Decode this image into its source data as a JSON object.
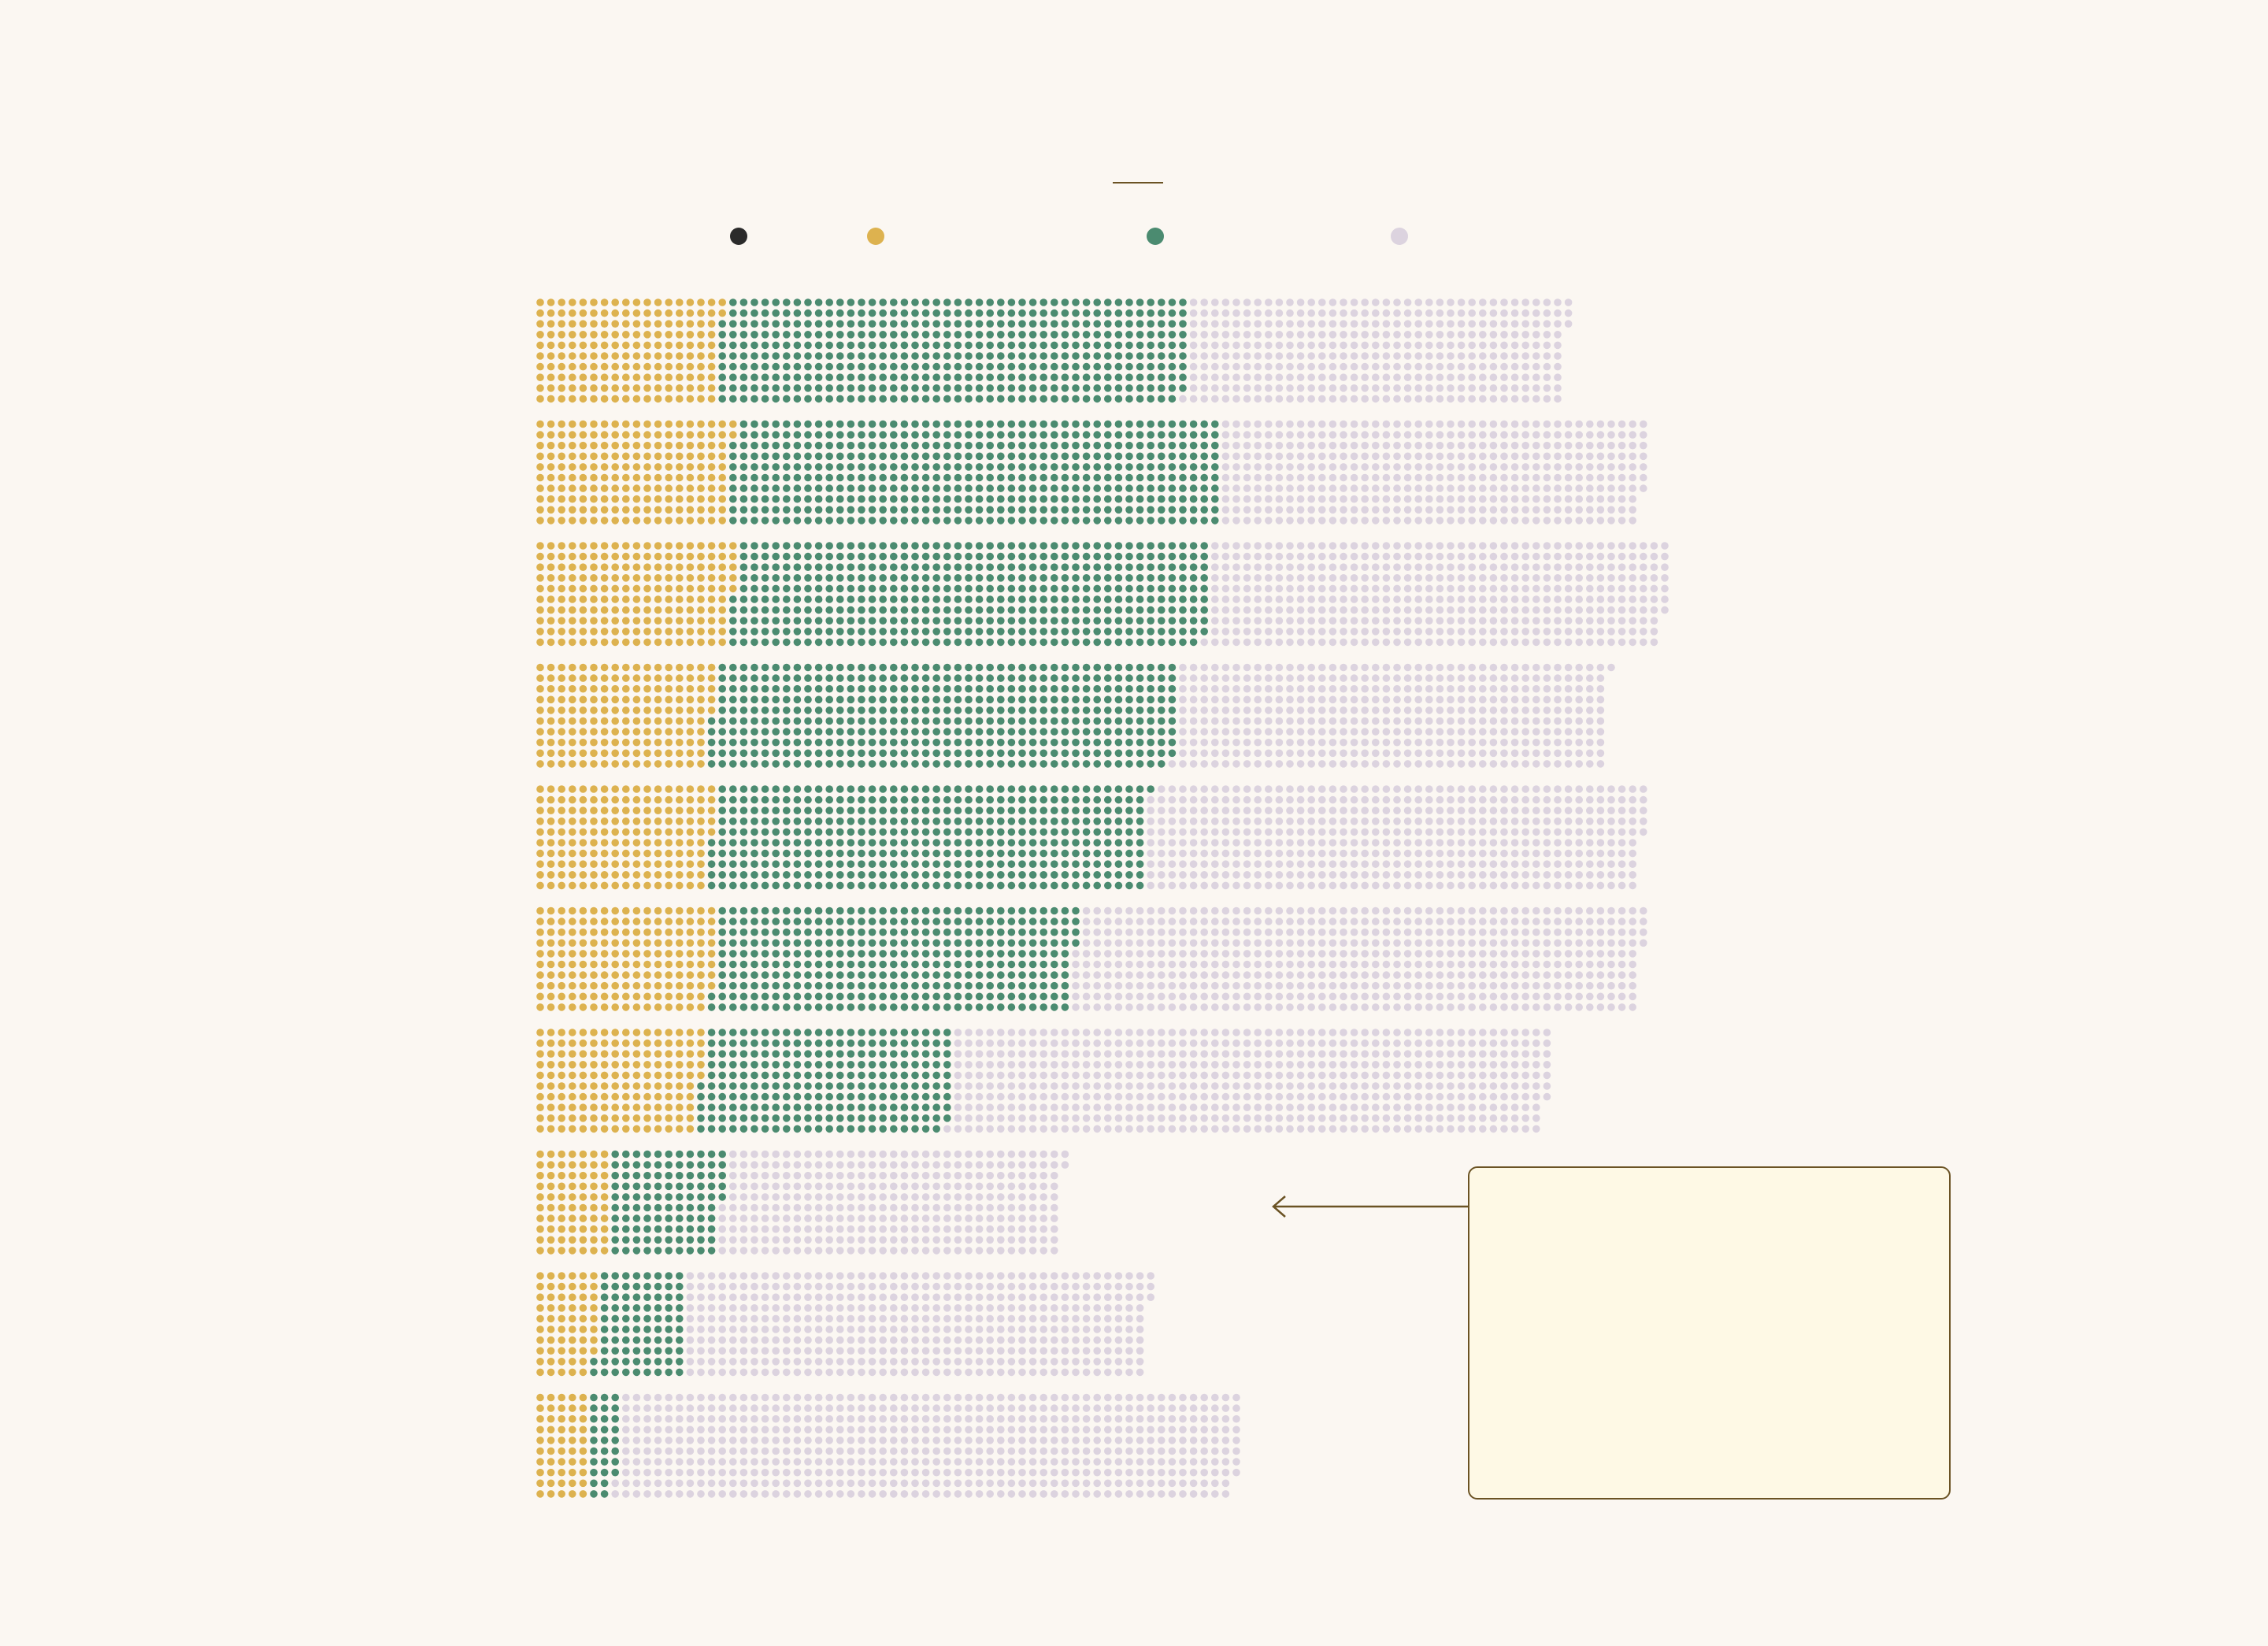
{
  "chart_data": {
    "type": "dot-matrix-stacked-bar",
    "title": "",
    "subtitle": "",
    "dots_per_column": 10,
    "legend": [
      {
        "key": "k0",
        "label": "",
        "color": "#2B2B2B"
      },
      {
        "key": "k1",
        "label": "",
        "color": "#DDB24F"
      },
      {
        "key": "k2",
        "label": "",
        "color": "#4B8B70"
      },
      {
        "key": "k3",
        "label": "",
        "color": "#DCD3DF"
      }
    ],
    "rows": [
      {
        "label": "",
        "segments": [
          {
            "key": "k1",
            "value": 172
          },
          {
            "key": "k2",
            "value": 437
          },
          {
            "key": "k3",
            "value": 354
          }
        ]
      },
      {
        "label": "",
        "segments": [
          {
            "key": "k1",
            "value": 182
          },
          {
            "key": "k2",
            "value": 458
          },
          {
            "key": "k3",
            "value": 397
          }
        ]
      },
      {
        "label": "",
        "segments": [
          {
            "key": "k1",
            "value": 185
          },
          {
            "key": "k2",
            "value": 444
          },
          {
            "key": "k3",
            "value": 428
          }
        ]
      },
      {
        "label": "",
        "segments": [
          {
            "key": "k1",
            "value": 165
          },
          {
            "key": "k2",
            "value": 434
          },
          {
            "key": "k3",
            "value": 402
          }
        ]
      },
      {
        "label": "",
        "segments": [
          {
            "key": "k1",
            "value": 165
          },
          {
            "key": "k2",
            "value": 406
          },
          {
            "key": "k3",
            "value": 464
          }
        ]
      },
      {
        "label": "",
        "segments": [
          {
            "key": "k1",
            "value": 168
          },
          {
            "key": "k2",
            "value": 336
          },
          {
            "key": "k3",
            "value": 530
          }
        ]
      },
      {
        "label": "",
        "segments": [
          {
            "key": "k1",
            "value": 155
          },
          {
            "key": "k2",
            "value": 234
          },
          {
            "key": "k3",
            "value": 558
          }
        ]
      },
      {
        "label": "",
        "segments": [
          {
            "key": "k1",
            "value": 70
          },
          {
            "key": "k2",
            "value": 105
          },
          {
            "key": "k3",
            "value": 317
          }
        ]
      },
      {
        "label": "",
        "segments": [
          {
            "key": "k1",
            "value": 58
          },
          {
            "key": "k2",
            "value": 82
          },
          {
            "key": "k3",
            "value": 433
          }
        ]
      },
      {
        "label": "",
        "segments": [
          {
            "key": "k1",
            "value": 50
          },
          {
            "key": "k2",
            "value": 28
          },
          {
            "key": "k3",
            "value": 580
          }
        ]
      }
    ],
    "callout": {
      "row": 7,
      "lines": []
    }
  }
}
